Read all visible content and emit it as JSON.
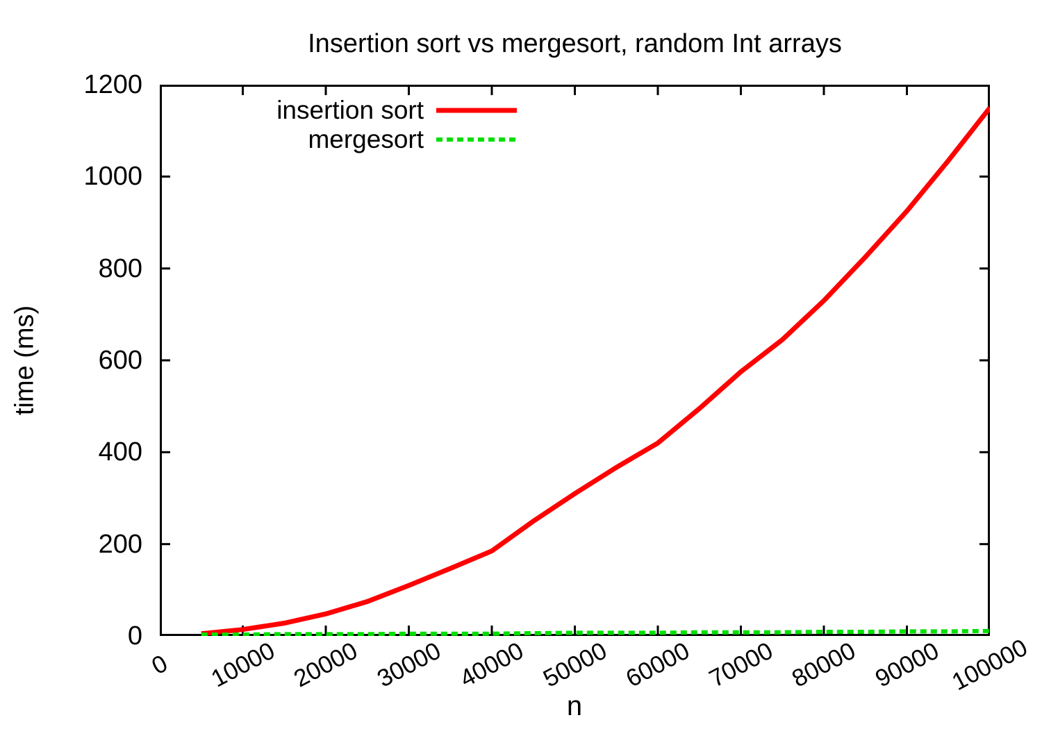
{
  "title": "Insertion sort vs mergesort, random Int arrays",
  "x_axis": {
    "label": "n",
    "ticks": [
      0,
      10000,
      20000,
      30000,
      40000,
      50000,
      60000,
      70000,
      80000,
      90000,
      100000
    ],
    "tick_labels": [
      "0",
      "10000",
      "20000",
      "30000",
      "40000",
      "50000",
      "60000",
      "70000",
      "80000",
      "90000",
      "100000"
    ]
  },
  "y_axis": {
    "label": "time (ms)",
    "ticks": [
      0,
      200,
      400,
      600,
      800,
      1000,
      1200
    ],
    "tick_labels": [
      "0",
      "200",
      "400",
      "600",
      "800",
      "1000",
      "1200"
    ]
  },
  "legend": {
    "items": [
      {
        "label": "insertion sort",
        "color": "#ff0000",
        "dash": "solid"
      },
      {
        "label": "mergesort",
        "color": "#00e000",
        "dash": "dashed"
      }
    ]
  },
  "colors": {
    "insertion_sort": "#ff0000",
    "mergesort": "#00e000",
    "axis": "#000000",
    "background": "#ffffff"
  },
  "chart_data": {
    "type": "line",
    "title": "Insertion sort vs mergesort, random Int arrays",
    "xlabel": "n",
    "ylabel": "time (ms)",
    "xlim": [
      0,
      100000
    ],
    "ylim": [
      0,
      1200
    ],
    "grid": false,
    "legend_position": "top-left",
    "x": [
      5000,
      10000,
      15000,
      20000,
      25000,
      30000,
      35000,
      40000,
      45000,
      50000,
      55000,
      60000,
      65000,
      70000,
      75000,
      80000,
      85000,
      90000,
      95000,
      100000
    ],
    "series": [
      {
        "name": "insertion sort",
        "color": "#ff0000",
        "dash": "solid",
        "values": [
          5,
          14,
          28,
          48,
          75,
          110,
          147,
          185,
          250,
          310,
          367,
          420,
          495,
          575,
          645,
          730,
          825,
          925,
          1035,
          1150
        ]
      },
      {
        "name": "mergesort",
        "color": "#00e000",
        "dash": "dashed",
        "values": [
          3,
          3,
          4,
          4,
          4,
          5,
          5,
          5,
          6,
          7,
          7,
          7,
          8,
          8,
          8,
          9,
          9,
          10,
          10,
          11
        ]
      }
    ]
  }
}
